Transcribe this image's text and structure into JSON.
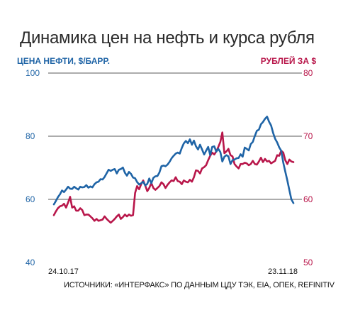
{
  "title": "Динамика цен на нефть и курса рубля",
  "source": "ИСТОЧНИКИ: «ИНТЕРФАКС» ПО ДАННЫМ ЦДУ ТЭК, EIA, ОПЕК, REFINITIV",
  "colors": {
    "oil": "#1f64a6",
    "rub": "#b8164a"
  },
  "chart_data": {
    "type": "line",
    "title": "Динамика цен на нефть и курса рубля",
    "x_start_label": "24.10.17",
    "x_end_label": "23.11.18",
    "left_axis": {
      "label": "ЦЕНА НЕФТИ, $/БАРР.",
      "range": [
        40,
        100
      ],
      "ticks": [
        40,
        60,
        80,
        100
      ]
    },
    "right_axis": {
      "label": "РУБЛЕЙ ЗА $",
      "range": [
        50,
        80
      ],
      "ticks": [
        50,
        60,
        70,
        80
      ]
    },
    "grid": true,
    "series": [
      {
        "name": "ЦЕНА НЕФТИ, $/БАРР.",
        "axis": "left",
        "values": [
          58.4,
          59.5,
          60.7,
          61.6,
          62.8,
          62.3,
          63.1,
          64.0,
          63.4,
          63.3,
          64.0,
          63.5,
          63.1,
          64.0,
          63.8,
          63.9,
          64.5,
          63.7,
          64.1,
          63.8,
          64.8,
          65.4,
          65.6,
          66.4,
          66.3,
          67.1,
          68.3,
          69.4,
          69.0,
          69.4,
          69.6,
          68.2,
          69.4,
          69.6,
          70.1,
          68.4,
          67.5,
          68.7,
          68.1,
          66.9,
          66.7,
          65.5,
          64.7,
          65.1,
          65.6,
          64.4,
          64.9,
          66.6,
          65.1,
          66.8,
          67.3,
          67.4,
          68.5,
          70.5,
          70.7,
          70.5,
          71.0,
          71.9,
          73.0,
          73.8,
          74.5,
          74.8,
          74.5,
          76.3,
          77.7,
          78.5,
          77.8,
          79.0,
          77.3,
          78.6,
          76.8,
          75.8,
          77.3,
          75.8,
          74.2,
          75.4,
          76.6,
          74.0,
          76.6,
          76.8,
          75.1,
          76.0,
          75.0,
          72.0,
          73.5,
          74.0,
          73.6,
          71.2,
          72.4,
          72.6,
          73.0,
          73.1,
          74.3,
          73.5,
          76.4,
          76.0,
          75.5,
          77.5,
          78.2,
          80.1,
          81.7,
          82.1,
          83.8,
          84.5,
          85.5,
          86.2,
          84.6,
          83.4,
          81.0,
          79.2,
          78.0,
          76.5,
          75.4,
          71.6,
          68.8,
          66.0,
          62.9,
          60.0,
          58.8
        ]
      },
      {
        "name": "РУБЛЕЙ ЗА $",
        "axis": "right",
        "values": [
          57.5,
          58.1,
          58.6,
          58.9,
          59.0,
          59.3,
          58.7,
          59.5,
          60.4,
          58.7,
          58.9,
          58.2,
          58.2,
          58.6,
          58.3,
          57.5,
          57.6,
          57.6,
          57.3,
          57.0,
          56.6,
          56.9,
          56.6,
          56.7,
          56.8,
          57.3,
          56.9,
          56.6,
          56.3,
          56.6,
          56.9,
          57.3,
          57.6,
          56.9,
          57.2,
          57.6,
          57.3,
          57.6,
          57.4,
          57.5,
          61.0,
          62.1,
          61.6,
          62.4,
          63.0,
          62.2,
          61.3,
          61.8,
          62.6,
          61.8,
          61.5,
          61.8,
          62.1,
          62.7,
          62.4,
          61.8,
          62.3,
          62.7,
          63.0,
          62.9,
          63.5,
          62.9,
          62.8,
          62.4,
          63.0,
          62.8,
          62.7,
          63.1,
          62.8,
          63.5,
          64.6,
          64.5,
          64.1,
          64.9,
          65.1,
          65.4,
          66.2,
          66.9,
          67.4,
          67.1,
          67.6,
          68.3,
          69.1,
          70.6,
          67.3,
          67.6,
          68.0,
          67.0,
          66.8,
          65.6,
          65.2,
          64.9,
          65.6,
          65.6,
          65.8,
          65.7,
          65.4,
          65.6,
          66.1,
          65.6,
          65.5,
          66.0,
          66.6,
          65.9,
          66.4,
          66.0,
          66.1,
          65.7,
          65.9,
          66.1,
          67.0,
          66.9,
          67.7,
          67.4,
          66.2,
          65.6,
          66.3,
          66.0,
          65.9
        ]
      }
    ]
  }
}
